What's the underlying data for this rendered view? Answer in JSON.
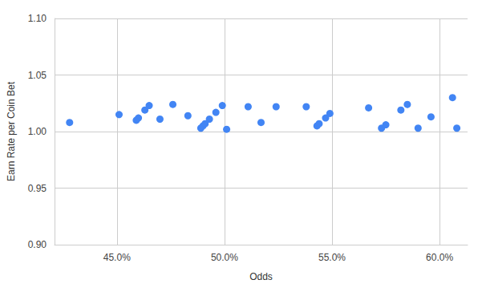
{
  "chart_data": {
    "type": "scatter",
    "x_label": "Odds",
    "y_label": "Earn Rate per Coin Bet",
    "x": [
      42.8,
      45.1,
      45.9,
      46.0,
      46.3,
      46.5,
      47.0,
      47.6,
      48.3,
      48.9,
      49.0,
      49.1,
      49.3,
      49.6,
      49.9,
      50.1,
      51.1,
      51.7,
      52.4,
      53.8,
      54.3,
      54.4,
      54.7,
      54.9,
      56.7,
      57.3,
      57.5,
      58.2,
      58.5,
      59.0,
      59.6,
      60.6,
      60.8
    ],
    "values": [
      1.008,
      1.015,
      1.01,
      1.012,
      1.019,
      1.023,
      1.011,
      1.024,
      1.014,
      1.003,
      1.005,
      1.007,
      1.011,
      1.017,
      1.023,
      1.002,
      1.022,
      1.008,
      1.022,
      1.022,
      1.005,
      1.007,
      1.012,
      1.016,
      1.021,
      1.003,
      1.006,
      1.019,
      1.024,
      1.003,
      1.013,
      1.03,
      1.003
    ],
    "color": "#4285f4",
    "marker": "circle",
    "xlim": [
      42.1,
      61.3
    ],
    "xticks": [
      {
        "value": 45,
        "label": "45.0%"
      },
      {
        "value": 50,
        "label": "50.0%"
      },
      {
        "value": 55,
        "label": "55.0%"
      },
      {
        "value": 60,
        "label": "60.0%"
      }
    ],
    "ylim": [
      0.9,
      1.1
    ],
    "yticks": [
      {
        "value": 0.9,
        "label": "0.90"
      },
      {
        "value": 0.95,
        "label": "0.95"
      },
      {
        "value": 1,
        "label": "1.00"
      },
      {
        "value": 1.05,
        "label": "1.05"
      },
      {
        "value": 1.1,
        "label": "1.10"
      }
    ],
    "grid": true
  }
}
